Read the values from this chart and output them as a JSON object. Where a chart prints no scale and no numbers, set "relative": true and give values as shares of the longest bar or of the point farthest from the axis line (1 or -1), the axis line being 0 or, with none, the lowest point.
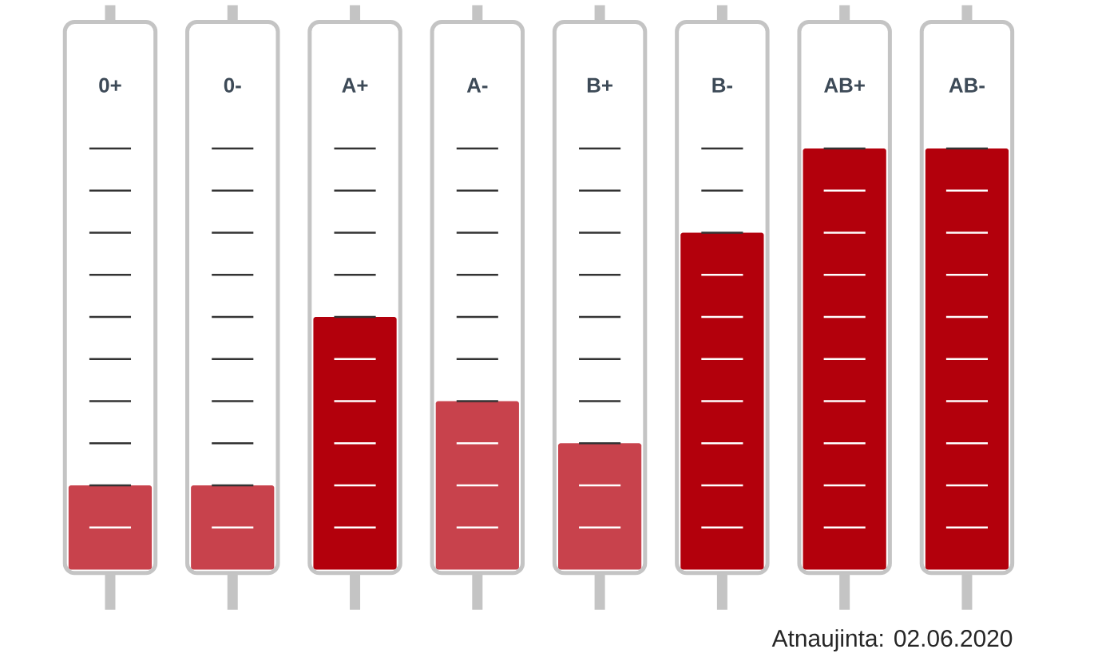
{
  "chart_data": {
    "type": "bar",
    "relative": true,
    "categories": [
      "0+",
      "0-",
      "A+",
      "A-",
      "B+",
      "B-",
      "AB+",
      "AB-"
    ],
    "values": [
      0.2,
      0.2,
      0.6,
      0.4,
      0.3,
      0.8,
      1,
      1
    ],
    "colors": [
      "#c8424c",
      "#c8424c",
      "#b3000c",
      "#c8424c",
      "#c8424c",
      "#b3000c",
      "#b3000c",
      "#b3000c"
    ],
    "annotations": [
      "Atnaujinta: 02.06.2020"
    ]
  }
}
